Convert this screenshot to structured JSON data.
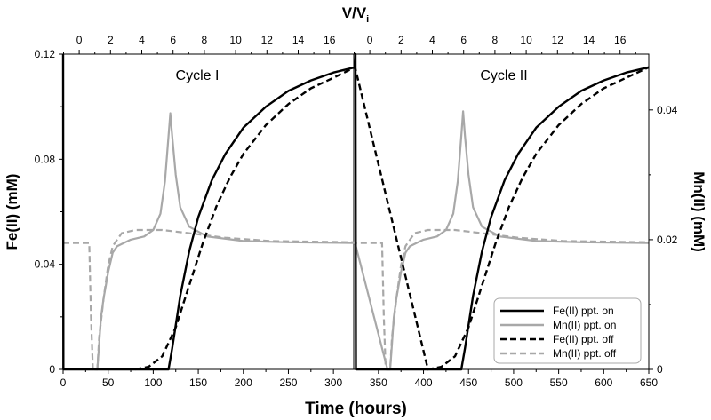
{
  "chart_data": {
    "type": "line",
    "xlabel": "Time (hours)",
    "xlim": [
      0,
      650
    ],
    "xticks": [
      0,
      50,
      100,
      150,
      200,
      250,
      300,
      350,
      400,
      450,
      500,
      550,
      600,
      650
    ],
    "ylabel_left": "Fe(II) (mM)",
    "ylim_left": [
      0,
      0.12
    ],
    "yticks_left": [
      "0",
      "0.04",
      "0.08",
      "0.12"
    ],
    "ylabel_right": "Mn(II) (mM)",
    "ylim_right": [
      0,
      0.0486
    ],
    "yticks_right": [
      "0",
      "0.02",
      "0.04"
    ],
    "top_axis_label": "V/V",
    "top_axis_subscript": "i",
    "top_axis_tick_labels": [
      "0",
      "2",
      "4",
      "6",
      "8",
      "10",
      "12",
      "14",
      "16"
    ],
    "top_axis_ticks_cycle1": [
      -1,
      0,
      2,
      4,
      6,
      8,
      10,
      12,
      14,
      16
    ],
    "top_axis_ticks_cycle2": [
      -1,
      0,
      2,
      4,
      6,
      8,
      10,
      12,
      14,
      16,
      17
    ],
    "annotations": [
      "Cycle I",
      "Cycle II"
    ],
    "legend": {
      "position": "bottom-right",
      "entries": [
        {
          "label": "Fe(II) ppt. on",
          "color": "#000000",
          "dash": "solid"
        },
        {
          "label": "Mn(II) ppt. on",
          "color": "#a8a8a8",
          "dash": "solid"
        },
        {
          "label": "Fe(II) ppt. off",
          "color": "#000000",
          "dash": "dashed"
        },
        {
          "label": "Mn(II) ppt. off",
          "color": "#a8a8a8",
          "dash": "dashed"
        }
      ]
    },
    "series": [
      {
        "name": "Fe(II) ppt. on",
        "axis": "left",
        "color": "#000000",
        "dash": "solid",
        "points": [
          [
            0,
            0.12
          ],
          [
            0.3,
            0
          ],
          [
            117,
            0
          ],
          [
            121,
            0.008
          ],
          [
            130,
            0.028
          ],
          [
            140,
            0.045
          ],
          [
            150,
            0.058
          ],
          [
            165,
            0.072
          ],
          [
            180,
            0.082
          ],
          [
            200,
            0.092
          ],
          [
            225,
            0.1
          ],
          [
            250,
            0.106
          ],
          [
            275,
            0.11
          ],
          [
            300,
            0.113
          ],
          [
            324,
            0.115
          ],
          [
            324.5,
            0.12
          ],
          [
            325,
            0
          ],
          [
            442,
            0
          ],
          [
            446,
            0.008
          ],
          [
            455,
            0.028
          ],
          [
            465,
            0.045
          ],
          [
            475,
            0.058
          ],
          [
            490,
            0.072
          ],
          [
            505,
            0.082
          ],
          [
            525,
            0.092
          ],
          [
            550,
            0.1
          ],
          [
            575,
            0.106
          ],
          [
            600,
            0.11
          ],
          [
            625,
            0.113
          ],
          [
            650,
            0.115
          ]
        ]
      },
      {
        "name": "Fe(II) ppt. off",
        "axis": "left",
        "color": "#000000",
        "dash": "dashed",
        "points": [
          [
            80,
            0
          ],
          [
            95,
            0.001
          ],
          [
            110,
            0.005
          ],
          [
            125,
            0.016
          ],
          [
            140,
            0.032
          ],
          [
            155,
            0.048
          ],
          [
            170,
            0.062
          ],
          [
            185,
            0.073
          ],
          [
            200,
            0.082
          ],
          [
            225,
            0.093
          ],
          [
            250,
            0.101
          ],
          [
            275,
            0.107
          ],
          [
            300,
            0.111
          ],
          [
            324,
            0.115
          ],
          [
            405,
            0
          ],
          [
            420,
            0.001
          ],
          [
            435,
            0.005
          ],
          [
            450,
            0.016
          ],
          [
            465,
            0.032
          ],
          [
            480,
            0.048
          ],
          [
            495,
            0.062
          ],
          [
            510,
            0.073
          ],
          [
            525,
            0.082
          ],
          [
            550,
            0.093
          ],
          [
            575,
            0.101
          ],
          [
            600,
            0.107
          ],
          [
            625,
            0.111
          ],
          [
            650,
            0.115
          ]
        ]
      },
      {
        "name": "Mn(II) ppt. on",
        "axis": "right",
        "color": "#a8a8a8",
        "dash": "solid",
        "points": [
          [
            35,
            0
          ],
          [
            38,
            0
          ],
          [
            40,
            0.004
          ],
          [
            42,
            0.008
          ],
          [
            45,
            0.011
          ],
          [
            50,
            0.015
          ],
          [
            55,
            0.018
          ],
          [
            60,
            0.019
          ],
          [
            75,
            0.02
          ],
          [
            90,
            0.0205
          ],
          [
            100,
            0.0215
          ],
          [
            108,
            0.024
          ],
          [
            113,
            0.029
          ],
          [
            117,
            0.036
          ],
          [
            119,
            0.0395
          ],
          [
            121,
            0.036
          ],
          [
            125,
            0.03
          ],
          [
            130,
            0.025
          ],
          [
            140,
            0.022
          ],
          [
            160,
            0.0205
          ],
          [
            200,
            0.0198
          ],
          [
            250,
            0.0196
          ],
          [
            324,
            0.0195
          ],
          [
            360,
            0
          ],
          [
            363,
            0
          ],
          [
            365,
            0.004
          ],
          [
            367,
            0.008
          ],
          [
            370,
            0.011
          ],
          [
            375,
            0.015
          ],
          [
            380,
            0.018
          ],
          [
            385,
            0.019
          ],
          [
            400,
            0.02
          ],
          [
            415,
            0.0205
          ],
          [
            425,
            0.0215
          ],
          [
            433,
            0.024
          ],
          [
            438,
            0.029
          ],
          [
            442,
            0.036
          ],
          [
            444,
            0.0398
          ],
          [
            446,
            0.036
          ],
          [
            450,
            0.03
          ],
          [
            455,
            0.025
          ],
          [
            465,
            0.022
          ],
          [
            485,
            0.0205
          ],
          [
            525,
            0.0198
          ],
          [
            575,
            0.0196
          ],
          [
            650,
            0.0195
          ]
        ]
      },
      {
        "name": "Mn(II) ppt. off",
        "axis": "right",
        "color": "#a8a8a8",
        "dash": "dashed",
        "points": [
          [
            0,
            0.0195
          ],
          [
            27,
            0.0195
          ],
          [
            29,
            0.0195
          ],
          [
            31,
            0.008
          ],
          [
            33,
            0
          ],
          [
            38,
            0
          ],
          [
            40,
            0.005
          ],
          [
            45,
            0.011
          ],
          [
            50,
            0.016
          ],
          [
            55,
            0.019
          ],
          [
            65,
            0.021
          ],
          [
            80,
            0.0215
          ],
          [
            110,
            0.0215
          ],
          [
            140,
            0.021
          ],
          [
            180,
            0.0203
          ],
          [
            230,
            0.0198
          ],
          [
            324,
            0.0196
          ],
          [
            325,
            0.0195
          ],
          [
            352,
            0.0195
          ],
          [
            354,
            0.0195
          ],
          [
            356,
            0.008
          ],
          [
            358,
            0
          ],
          [
            363,
            0
          ],
          [
            365,
            0.005
          ],
          [
            370,
            0.011
          ],
          [
            375,
            0.016
          ],
          [
            380,
            0.019
          ],
          [
            390,
            0.021
          ],
          [
            405,
            0.0215
          ],
          [
            435,
            0.0215
          ],
          [
            465,
            0.021
          ],
          [
            505,
            0.0203
          ],
          [
            555,
            0.0198
          ],
          [
            650,
            0.0196
          ]
        ]
      }
    ]
  },
  "colors": {
    "fe": "#000000",
    "mn": "#a8a8a8",
    "legend_border": "#a8a8a8"
  }
}
